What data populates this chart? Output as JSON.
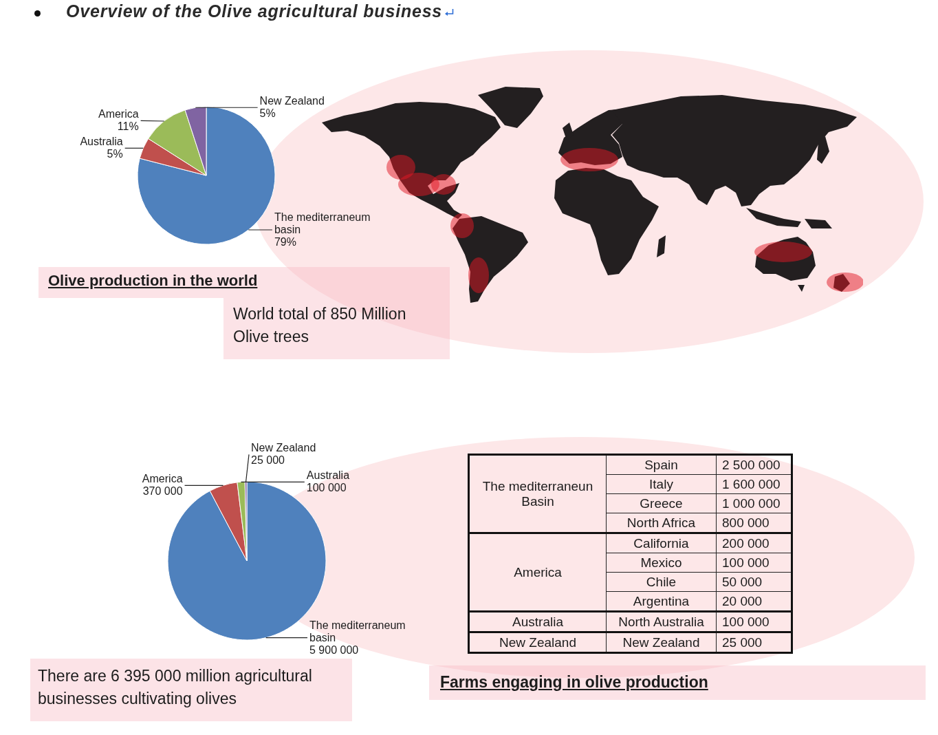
{
  "chart_data": [
    {
      "type": "pie",
      "title": "Overview of the Olive agricultural business",
      "subtitle": "Olive production in the world",
      "categories": [
        "The mediterraneum basin",
        "Australia",
        "America",
        "New Zealand"
      ],
      "values": [
        79,
        5,
        11,
        5
      ],
      "colors": [
        "#4f81bd",
        "#c0504d",
        "#9bbb59",
        "#8064a2"
      ],
      "value_labels": [
        "79%",
        "5%",
        "11%",
        "5%"
      ],
      "annotations": [
        "World total of 850 Million Olive trees"
      ]
    },
    {
      "type": "pie",
      "categories": [
        "The mediterraneum basin",
        "America",
        "Australia",
        "New Zealand"
      ],
      "values": [
        5900000,
        370000,
        100000,
        25000
      ],
      "colors": [
        "#4f81bd",
        "#c0504d",
        "#9bbb59",
        "#8064a2"
      ],
      "value_labels": [
        "5 900 000",
        "370 000",
        "100 000",
        "25 000"
      ],
      "annotations": [
        "There are 6 395 000 million agricultural businesses cultivating olives"
      ]
    },
    {
      "type": "other",
      "title": "Farms engaging in olive production",
      "categories": [
        "Spain",
        "Italy",
        "Greece",
        "North Africa",
        "California",
        "Mexico",
        "Chile",
        "Argentina",
        "North Australia",
        "New Zealand"
      ],
      "series": [
        {
          "name": "The mediterraneun Basin",
          "values": [
            2500000,
            1600000,
            1000000,
            800000,
            null,
            null,
            null,
            null,
            null,
            null
          ],
          "value_labels": [
            "2 500 000",
            "1 600 000",
            "1 000 000",
            "800 000",
            null,
            null,
            null,
            null,
            null,
            null
          ]
        },
        {
          "name": "America",
          "values": [
            null,
            null,
            null,
            null,
            200000,
            100000,
            50000,
            20000,
            null,
            null
          ],
          "value_labels": [
            null,
            null,
            null,
            null,
            "200 000",
            "100 000",
            "50 000",
            "20 000",
            null,
            null
          ]
        },
        {
          "name": "Australia",
          "values": [
            null,
            null,
            null,
            null,
            null,
            null,
            null,
            null,
            100000,
            null
          ],
          "value_labels": [
            null,
            null,
            null,
            null,
            null,
            null,
            null,
            null,
            "100 000",
            null
          ]
        },
        {
          "name": "New Zealand",
          "values": [
            null,
            null,
            null,
            null,
            null,
            null,
            null,
            null,
            null,
            25000
          ],
          "value_labels": [
            null,
            null,
            null,
            null,
            null,
            null,
            null,
            null,
            null,
            "25 000"
          ]
        }
      ]
    }
  ]
}
